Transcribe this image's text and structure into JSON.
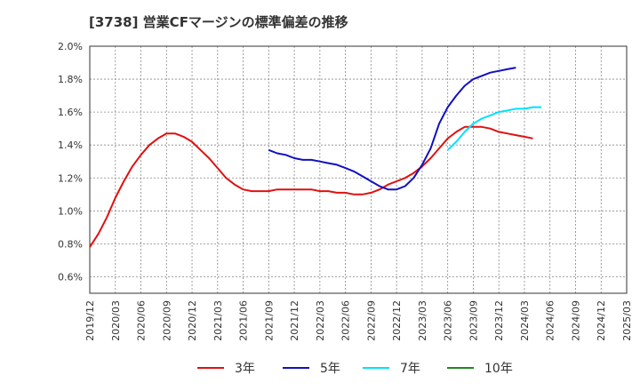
{
  "chart_data": {
    "type": "line",
    "title": "[3738]  営業CFマージンの標準偏差の推移",
    "xlabel": "",
    "ylabel": "",
    "ylim": [
      0.5,
      2.0
    ],
    "x_tick_labels": [
      "2019/12",
      "2020/03",
      "2020/06",
      "2020/09",
      "2020/12",
      "2021/03",
      "2021/06",
      "2021/09",
      "2021/12",
      "2022/03",
      "2022/06",
      "2022/09",
      "2022/12",
      "2023/03",
      "2023/06",
      "2023/09",
      "2023/12",
      "2024/03",
      "2024/06",
      "2024/09",
      "2024/12",
      "2025/03"
    ],
    "y_tick_labels": [
      "2.0%",
      "1.8%",
      "1.6%",
      "1.4%",
      "1.2%",
      "1.0%",
      "0.8%",
      "0.6%"
    ],
    "y_tick_values": [
      2.0,
      1.8,
      1.6,
      1.4,
      1.2,
      1.0,
      0.8,
      0.6
    ],
    "grid": true,
    "legend_position": "bottom",
    "series": [
      {
        "name": "3年",
        "color": "#e01010",
        "x_start": "2019/12",
        "values": [
          0.78,
          0.86,
          0.96,
          1.08,
          1.18,
          1.27,
          1.34,
          1.4,
          1.44,
          1.47,
          1.47,
          1.45,
          1.42,
          1.37,
          1.32,
          1.26,
          1.2,
          1.16,
          1.13,
          1.12,
          1.12,
          1.12,
          1.13,
          1.13,
          1.13,
          1.13,
          1.13,
          1.12,
          1.12,
          1.11,
          1.11,
          1.1,
          1.1,
          1.11,
          1.13,
          1.16,
          1.18,
          1.2,
          1.23,
          1.27,
          1.32,
          1.38,
          1.44,
          1.48,
          1.51,
          1.51,
          1.51,
          1.5,
          1.48,
          1.47,
          1.46,
          1.45,
          1.44
        ]
      },
      {
        "name": "5年",
        "color": "#1010c0",
        "x_start": "2021/09",
        "values": [
          1.37,
          1.35,
          1.34,
          1.32,
          1.31,
          1.31,
          1.3,
          1.29,
          1.28,
          1.26,
          1.24,
          1.21,
          1.18,
          1.15,
          1.13,
          1.13,
          1.15,
          1.2,
          1.28,
          1.38,
          1.53,
          1.63,
          1.7,
          1.76,
          1.8,
          1.82,
          1.84,
          1.85,
          1.86,
          1.87
        ]
      },
      {
        "name": "7年",
        "color": "#00e0ff",
        "x_start": "2023/06",
        "values": [
          1.37,
          1.42,
          1.48,
          1.53,
          1.56,
          1.58,
          1.6,
          1.61,
          1.62,
          1.62,
          1.63,
          1.63
        ]
      },
      {
        "name": "10年",
        "color": "#228822",
        "x_start": "",
        "values": []
      }
    ]
  },
  "legend": [
    {
      "label": "3年",
      "color": "#e01010"
    },
    {
      "label": "5年",
      "color": "#1010c0"
    },
    {
      "label": "7年",
      "color": "#00e0ff"
    },
    {
      "label": "10年",
      "color": "#228822"
    }
  ]
}
